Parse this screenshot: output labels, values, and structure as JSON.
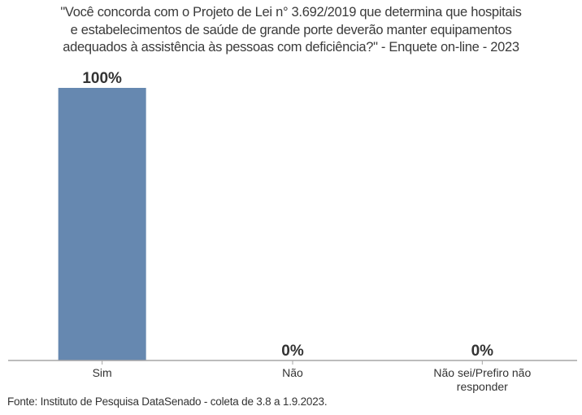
{
  "chart_data": {
    "type": "bar",
    "title_lines": [
      "\"Você concorda com o Projeto de Lei n° 3.692/2019 que determina que hospitais",
      "e estabelecimentos de saúde de grande porte deverão manter equipamentos",
      "adequados à assistência às pessoas com deficiência?\" - Enquete on-line - 2023"
    ],
    "categories": [
      "Sim",
      "Não",
      "Não sei/Prefiro não responder"
    ],
    "category_label_lines": [
      [
        "Sim"
      ],
      [
        "Não"
      ],
      [
        "Não sei/Prefiro não",
        "responder"
      ]
    ],
    "values": [
      100,
      0,
      0
    ],
    "data_labels": [
      "100%",
      "0%",
      "0%"
    ],
    "ylim": [
      0,
      100
    ],
    "grid": false,
    "bar_color": "#6688b0",
    "axis_color": "#a6a6a6"
  },
  "source": "Fonte: Instituto de Pesquisa DataSenado - coleta de 3.8 a 1.9.2023."
}
